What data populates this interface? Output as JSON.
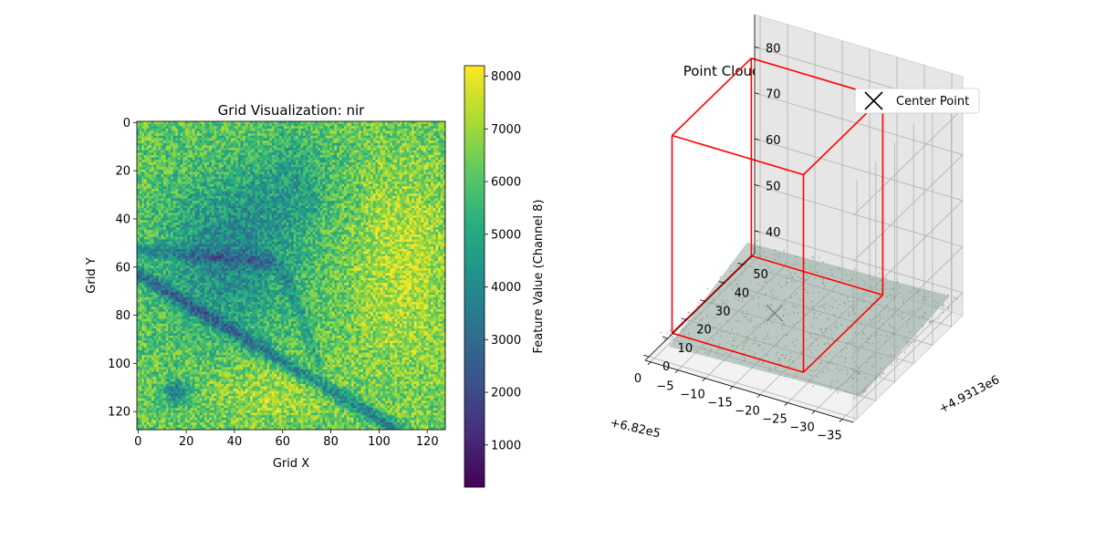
{
  "chart_data": [
    {
      "type": "heatmap",
      "title": "Grid Visualization: nir",
      "xlabel": "Grid X",
      "ylabel": "Grid Y",
      "grid_size": 128,
      "x_ticks": [
        0,
        20,
        40,
        60,
        80,
        100,
        120
      ],
      "y_ticks": [
        0,
        20,
        40,
        60,
        80,
        100,
        120
      ],
      "colorbar": {
        "label": "Feature Value (Channel 8)",
        "vmin": 200,
        "vmax": 8200,
        "ticks": [
          1000,
          2000,
          3000,
          4000,
          5000,
          6000,
          7000,
          8000
        ],
        "colormap": "viridis"
      }
    },
    {
      "type": "scatter",
      "title": "Point Cloud Subset Visualization",
      "x_offset_label": "+6.82e5",
      "y_offset_label": "+4.9313e6",
      "x_ticks": [
        -35,
        -30,
        -25,
        -20,
        -15,
        -10,
        -5,
        0
      ],
      "y_ticks": [
        0,
        10,
        20,
        30,
        40,
        50
      ],
      "z_ticks": [
        40,
        50,
        60,
        70,
        80
      ],
      "xlim": [
        -37,
        1
      ],
      "ylim": [
        -2,
        56
      ],
      "zlim": [
        35,
        87
      ],
      "ground_z": 39,
      "point_color": "#8fa59a",
      "box": {
        "x": [
          -25.5,
          -1.5
        ],
        "y": [
          5,
          47
        ],
        "z": [
          39,
          82
        ],
        "color": "#ff0000"
      },
      "center_point": {
        "x": -13,
        "y": 26,
        "z": 39
      },
      "legend": {
        "entries": [
          "Center Point"
        ],
        "placement": "upper-right"
      }
    }
  ]
}
